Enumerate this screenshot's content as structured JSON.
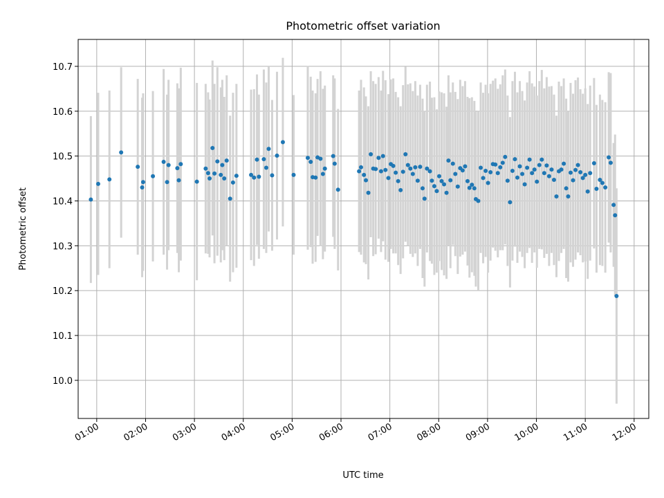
{
  "chart_data": {
    "type": "scatter",
    "title": "Photometric offset variation",
    "xlabel": "UTC time",
    "ylabel": "Photometric offset",
    "xlim": [
      0.62,
      12.3
    ],
    "ylim": [
      9.915,
      10.76
    ],
    "xticks": [
      1,
      2,
      3,
      4,
      5,
      6,
      7,
      8,
      9,
      10,
      11,
      12
    ],
    "xtick_labels": [
      "01:00",
      "02:00",
      "03:00",
      "04:00",
      "05:00",
      "06:00",
      "07:00",
      "08:00",
      "09:00",
      "10:00",
      "11:00",
      "12:00"
    ],
    "yticks": [
      10.0,
      10.1,
      10.2,
      10.3,
      10.4,
      10.5,
      10.6,
      10.7
    ],
    "ytick_labels": [
      "10.0",
      "10.1",
      "10.2",
      "10.3",
      "10.4",
      "10.5",
      "10.6",
      "10.7"
    ],
    "grid": true,
    "colors": {
      "points": "#1f77b4",
      "errorbars": "#d3d3d3",
      "grid": "#b0b0b0"
    },
    "series": [
      {
        "name": "Photometric offset",
        "x_y_err": [
          [
            0.88,
            10.403,
            0.186
          ],
          [
            1.03,
            10.438,
            0.203
          ],
          [
            1.26,
            10.448,
            0.198
          ],
          [
            1.5,
            10.508,
            0.19
          ],
          [
            1.84,
            10.476,
            0.196
          ],
          [
            1.93,
            10.43,
            0.2
          ],
          [
            1.95,
            10.442,
            0.198
          ],
          [
            2.15,
            10.455,
            0.19
          ],
          [
            2.37,
            10.487,
            0.207
          ],
          [
            2.44,
            10.442,
            0.195
          ],
          [
            2.47,
            10.48,
            0.19
          ],
          [
            2.65,
            10.473,
            0.189
          ],
          [
            2.68,
            10.446,
            0.205
          ],
          [
            2.72,
            10.482,
            0.215
          ],
          [
            3.05,
            10.443,
            0.22
          ],
          [
            3.23,
            10.472,
            0.189
          ],
          [
            3.28,
            10.462,
            0.18
          ],
          [
            3.31,
            10.45,
            0.176
          ],
          [
            3.37,
            10.518,
            0.195
          ],
          [
            3.41,
            10.461,
            0.2
          ],
          [
            3.47,
            10.488,
            0.21
          ],
          [
            3.54,
            10.458,
            0.195
          ],
          [
            3.57,
            10.48,
            0.19
          ],
          [
            3.61,
            10.45,
            0.182
          ],
          [
            3.66,
            10.49,
            0.19
          ],
          [
            3.73,
            10.405,
            0.185
          ],
          [
            3.79,
            10.441,
            0.2
          ],
          [
            3.86,
            10.456,
            0.205
          ],
          [
            4.16,
            10.458,
            0.19
          ],
          [
            4.22,
            10.452,
            0.197
          ],
          [
            4.28,
            10.492,
            0.19
          ],
          [
            4.32,
            10.454,
            0.183
          ],
          [
            4.42,
            10.493,
            0.2
          ],
          [
            4.47,
            10.474,
            0.19
          ],
          [
            4.52,
            10.516,
            0.184
          ],
          [
            4.59,
            10.457,
            0.168
          ],
          [
            4.69,
            10.501,
            0.187
          ],
          [
            4.81,
            10.531,
            0.188
          ],
          [
            5.03,
            10.458,
            0.178
          ],
          [
            5.32,
            10.496,
            0.205
          ],
          [
            5.38,
            10.487,
            0.19
          ],
          [
            5.42,
            10.453,
            0.193
          ],
          [
            5.48,
            10.452,
            0.188
          ],
          [
            5.52,
            10.497,
            0.175
          ],
          [
            5.58,
            10.494,
            0.195
          ],
          [
            5.63,
            10.46,
            0.19
          ],
          [
            5.67,
            10.472,
            0.185
          ],
          [
            5.84,
            10.5,
            0.18
          ],
          [
            5.87,
            10.483,
            0.19
          ],
          [
            5.94,
            10.425,
            0.18
          ],
          [
            6.37,
            10.466,
            0.18
          ],
          [
            6.41,
            10.475,
            0.195
          ],
          [
            6.47,
            10.458,
            0.195
          ],
          [
            6.51,
            10.446,
            0.187
          ],
          [
            6.56,
            10.418,
            0.193
          ],
          [
            6.61,
            10.504,
            0.185
          ],
          [
            6.66,
            10.472,
            0.195
          ],
          [
            6.71,
            10.471,
            0.19
          ],
          [
            6.77,
            10.496,
            0.18
          ],
          [
            6.82,
            10.466,
            0.18
          ],
          [
            6.86,
            10.5,
            0.19
          ],
          [
            6.91,
            10.469,
            0.2
          ],
          [
            6.97,
            10.451,
            0.187
          ],
          [
            7.02,
            10.482,
            0.189
          ],
          [
            7.07,
            10.478,
            0.195
          ],
          [
            7.12,
            10.463,
            0.18
          ],
          [
            7.17,
            10.444,
            0.187
          ],
          [
            7.22,
            10.424,
            0.187
          ],
          [
            7.27,
            10.465,
            0.193
          ],
          [
            7.32,
            10.504,
            0.195
          ],
          [
            7.37,
            10.48,
            0.18
          ],
          [
            7.42,
            10.472,
            0.19
          ],
          [
            7.47,
            10.46,
            0.185
          ],
          [
            7.52,
            10.475,
            0.192
          ],
          [
            7.57,
            10.445,
            0.19
          ],
          [
            7.62,
            10.476,
            0.183
          ],
          [
            7.67,
            10.428,
            0.2
          ],
          [
            7.71,
            10.405,
            0.196
          ],
          [
            7.76,
            10.472,
            0.187
          ],
          [
            7.82,
            10.466,
            0.2
          ],
          [
            7.86,
            10.445,
            0.185
          ],
          [
            7.91,
            10.433,
            0.198
          ],
          [
            7.96,
            10.422,
            0.182
          ],
          [
            8.01,
            10.455,
            0.189
          ],
          [
            8.06,
            10.444,
            0.198
          ],
          [
            8.11,
            10.437,
            0.203
          ],
          [
            8.16,
            10.418,
            0.192
          ],
          [
            8.2,
            10.49,
            0.19
          ],
          [
            8.24,
            10.446,
            0.196
          ],
          [
            8.29,
            10.483,
            0.181
          ],
          [
            8.34,
            10.46,
            0.183
          ],
          [
            8.39,
            10.432,
            0.195
          ],
          [
            8.44,
            10.473,
            0.197
          ],
          [
            8.49,
            10.468,
            0.188
          ],
          [
            8.54,
            10.477,
            0.19
          ],
          [
            8.59,
            10.444,
            0.188
          ],
          [
            8.63,
            10.429,
            0.2
          ],
          [
            8.68,
            10.436,
            0.195
          ],
          [
            8.73,
            10.428,
            0.195
          ],
          [
            8.76,
            10.404,
            0.195
          ],
          [
            8.81,
            10.4,
            0.2
          ],
          [
            8.86,
            10.474,
            0.19
          ],
          [
            8.91,
            10.451,
            0.19
          ],
          [
            8.96,
            10.467,
            0.192
          ],
          [
            9.01,
            10.44,
            0.2
          ],
          [
            9.06,
            10.464,
            0.197
          ],
          [
            9.11,
            10.482,
            0.186
          ],
          [
            9.16,
            10.481,
            0.192
          ],
          [
            9.21,
            10.462,
            0.188
          ],
          [
            9.26,
            10.475,
            0.185
          ],
          [
            9.31,
            10.485,
            0.195
          ],
          [
            9.36,
            10.498,
            0.195
          ],
          [
            9.41,
            10.445,
            0.19
          ],
          [
            9.46,
            10.397,
            0.19
          ],
          [
            9.51,
            10.467,
            0.2
          ],
          [
            9.56,
            10.493,
            0.195
          ],
          [
            9.61,
            10.452,
            0.19
          ],
          [
            9.66,
            10.477,
            0.19
          ],
          [
            9.71,
            10.46,
            0.185
          ],
          [
            9.76,
            10.437,
            0.187
          ],
          [
            9.81,
            10.474,
            0.19
          ],
          [
            9.86,
            10.492,
            0.197
          ],
          [
            9.91,
            10.462,
            0.2
          ],
          [
            9.96,
            10.47,
            0.185
          ],
          [
            10.01,
            10.443,
            0.192
          ],
          [
            10.06,
            10.48,
            0.187
          ],
          [
            10.11,
            10.492,
            0.2
          ],
          [
            10.16,
            10.462,
            0.189
          ],
          [
            10.21,
            10.479,
            0.197
          ],
          [
            10.26,
            10.455,
            0.2
          ],
          [
            10.31,
            10.47,
            0.186
          ],
          [
            10.36,
            10.447,
            0.19
          ],
          [
            10.41,
            10.41,
            0.18
          ],
          [
            10.46,
            10.466,
            0.2
          ],
          [
            10.51,
            10.47,
            0.186
          ],
          [
            10.56,
            10.483,
            0.19
          ],
          [
            10.61,
            10.428,
            0.2
          ],
          [
            10.65,
            10.41,
            0.19
          ],
          [
            10.7,
            10.463,
            0.2
          ],
          [
            10.75,
            10.446,
            0.193
          ],
          [
            10.8,
            10.469,
            0.2
          ],
          [
            10.85,
            10.48,
            0.195
          ],
          [
            10.9,
            10.464,
            0.185
          ],
          [
            10.95,
            10.451,
            0.188
          ],
          [
            11.0,
            10.458,
            0.193
          ],
          [
            11.05,
            10.421,
            0.195
          ],
          [
            11.1,
            10.462,
            0.195
          ],
          [
            11.18,
            10.484,
            0.19
          ],
          [
            11.23,
            10.427,
            0.187
          ],
          [
            11.3,
            10.447,
            0.19
          ],
          [
            11.35,
            10.44,
            0.185
          ],
          [
            11.41,
            10.43,
            0.19
          ],
          [
            11.48,
            10.497,
            0.19
          ],
          [
            11.52,
            10.485,
            0.2
          ],
          [
            11.58,
            10.391,
            0.138
          ],
          [
            11.61,
            10.368,
            0.18
          ],
          [
            11.64,
            10.188,
            0.24
          ]
        ]
      }
    ]
  }
}
